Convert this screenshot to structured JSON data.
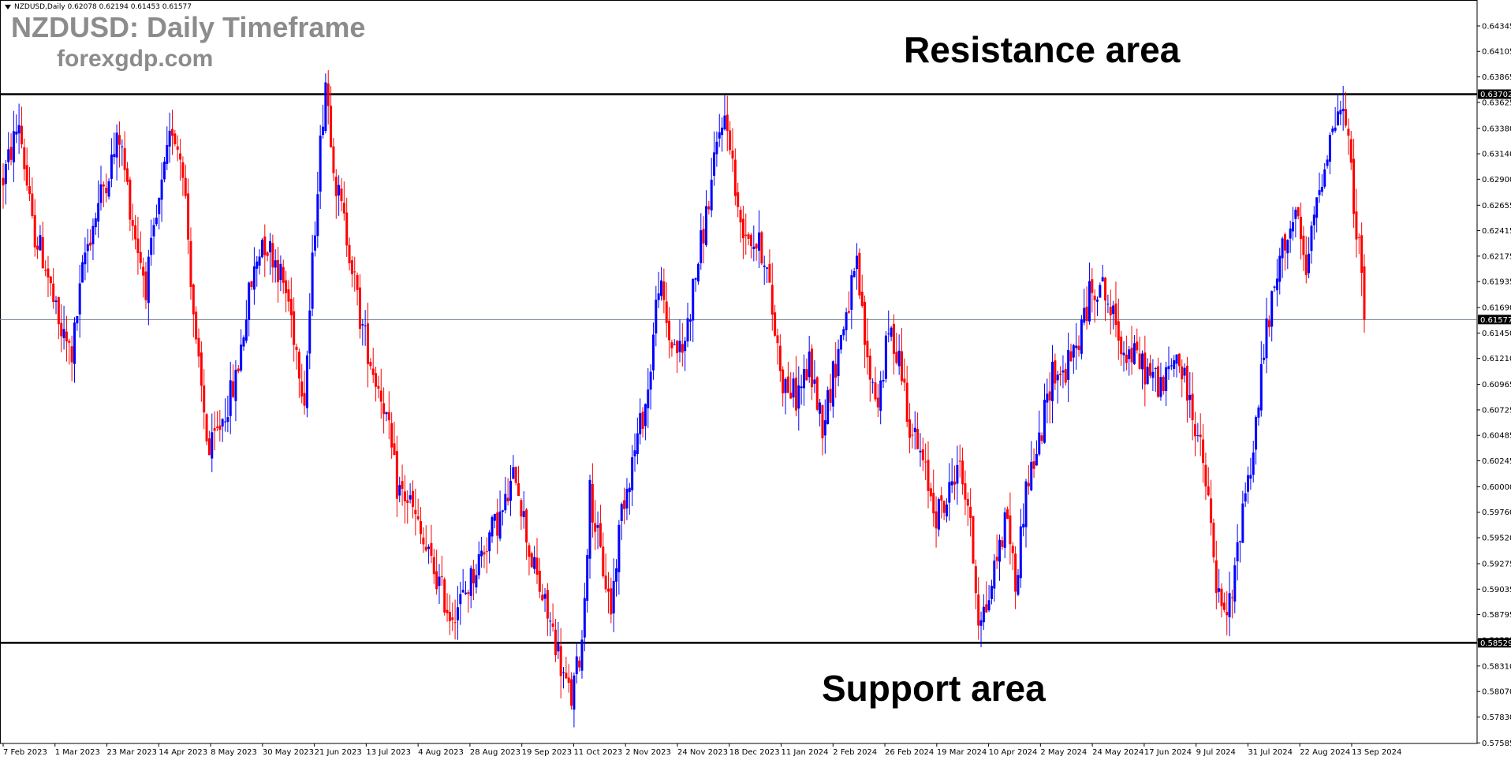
{
  "header": {
    "symbol_line": "NZDUSD,Daily  0.62078 0.62194 0.61453 0.61577"
  },
  "overlay": {
    "title": "NZDUSD: Daily Timeframe",
    "site": "forexgdp.com"
  },
  "annotations": {
    "resistance_label": "Resistance area",
    "support_label": "Support area"
  },
  "colors": {
    "bull": "#0000ff",
    "bear": "#ff0000",
    "level_line": "#000000",
    "current_price_line": "#708090",
    "background": "#ffffff",
    "price_tag_bg": "#000000"
  },
  "chart_data": {
    "type": "candlestick",
    "symbol": "NZDUSD",
    "timeframe": "Daily",
    "last_bar": {
      "open": 0.62078,
      "high": 0.62194,
      "low": 0.61453,
      "close": 0.61577
    },
    "ylim": [
      0.5758,
      0.6459
    ],
    "y_ticks": [
      "0.64345",
      "0.64105",
      "0.63865",
      "0.63625",
      "0.63380",
      "0.63140",
      "0.62900",
      "0.62655",
      "0.62415",
      "0.62175",
      "0.61935",
      "0.61690",
      "0.61450",
      "0.61210",
      "0.60965",
      "0.60725",
      "0.60485",
      "0.60245",
      "0.60000",
      "0.59760",
      "0.59520",
      "0.59275",
      "0.59035",
      "0.58795",
      "0.58555",
      "0.58310",
      "0.58070",
      "0.57830",
      "0.57585"
    ],
    "x_ticks": [
      "7 Feb 2023",
      "1 Mar 2023",
      "23 Mar 2023",
      "14 Apr 2023",
      "8 May 2023",
      "30 May 2023",
      "21 Jun 2023",
      "13 Jul 2023",
      "4 Aug 2023",
      "28 Aug 2023",
      "19 Sep 2023",
      "11 Oct 2023",
      "2 Nov 2023",
      "24 Nov 2023",
      "18 Dec 2023",
      "11 Jan 2024",
      "2 Feb 2024",
      "26 Feb 2024",
      "19 Mar 2024",
      "10 Apr 2024",
      "2 May 2024",
      "24 May 2024",
      "17 Jun 2024",
      "9 Jul 2024",
      "31 Jul 2024",
      "22 Aug 2024",
      "13 Sep 2024"
    ],
    "levels": {
      "resistance": 0.63702,
      "support": 0.58529,
      "current": 0.61577
    },
    "level_labels": {
      "resistance": "0.63702",
      "support": "0.58529",
      "current": "0.61577"
    },
    "close_path": [
      [
        0,
        0.629
      ],
      [
        12,
        0.6345
      ],
      [
        22,
        0.6245
      ],
      [
        32,
        0.621
      ],
      [
        42,
        0.615
      ],
      [
        52,
        0.6125
      ],
      [
        62,
        0.622
      ],
      [
        75,
        0.628
      ],
      [
        88,
        0.633
      ],
      [
        98,
        0.625
      ],
      [
        108,
        0.619
      ],
      [
        118,
        0.6265
      ],
      [
        128,
        0.634
      ],
      [
        136,
        0.6305
      ],
      [
        146,
        0.613
      ],
      [
        156,
        0.603
      ],
      [
        166,
        0.6065
      ],
      [
        176,
        0.61
      ],
      [
        186,
        0.618
      ],
      [
        196,
        0.6235
      ],
      [
        206,
        0.6215
      ],
      [
        216,
        0.6175
      ],
      [
        228,
        0.6085
      ],
      [
        238,
        0.629
      ],
      [
        244,
        0.6385
      ],
      [
        252,
        0.6285
      ],
      [
        262,
        0.6225
      ],
      [
        270,
        0.616
      ],
      [
        280,
        0.611
      ],
      [
        288,
        0.608
      ],
      [
        298,
        0.6
      ],
      [
        308,
        0.5985
      ],
      [
        318,
        0.5945
      ],
      [
        328,
        0.5915
      ],
      [
        338,
        0.588
      ],
      [
        348,
        0.5895
      ],
      [
        358,
        0.5925
      ],
      [
        368,
        0.5955
      ],
      [
        378,
        0.5975
      ],
      [
        388,
        0.6015
      ],
      [
        398,
        0.594
      ],
      [
        408,
        0.5895
      ],
      [
        418,
        0.5855
      ],
      [
        425,
        0.5815
      ],
      [
        430,
        0.58
      ],
      [
        438,
        0.5855
      ],
      [
        444,
        0.5995
      ],
      [
        452,
        0.5935
      ],
      [
        460,
        0.5885
      ],
      [
        468,
        0.598
      ],
      [
        478,
        0.6035
      ],
      [
        488,
        0.609
      ],
      [
        496,
        0.6195
      ],
      [
        504,
        0.614
      ],
      [
        514,
        0.6125
      ],
      [
        524,
        0.62
      ],
      [
        534,
        0.627
      ],
      [
        544,
        0.635
      ],
      [
        550,
        0.633
      ],
      [
        556,
        0.6255
      ],
      [
        566,
        0.6235
      ],
      [
        576,
        0.622
      ],
      [
        582,
        0.6165
      ],
      [
        590,
        0.61
      ],
      [
        600,
        0.6085
      ],
      [
        610,
        0.6115
      ],
      [
        620,
        0.606
      ],
      [
        628,
        0.6105
      ],
      [
        638,
        0.6165
      ],
      [
        646,
        0.6205
      ],
      [
        654,
        0.6115
      ],
      [
        662,
        0.608
      ],
      [
        670,
        0.6145
      ],
      [
        678,
        0.6125
      ],
      [
        686,
        0.606
      ],
      [
        696,
        0.602
      ],
      [
        706,
        0.5975
      ],
      [
        714,
        0.5985
      ],
      [
        722,
        0.6025
      ],
      [
        730,
        0.5985
      ],
      [
        738,
        0.588
      ],
      [
        744,
        0.5885
      ],
      [
        752,
        0.5935
      ],
      [
        760,
        0.5975
      ],
      [
        766,
        0.5905
      ],
      [
        774,
        0.6
      ],
      [
        784,
        0.604
      ],
      [
        794,
        0.611
      ],
      [
        802,
        0.6105
      ],
      [
        812,
        0.613
      ],
      [
        822,
        0.618
      ],
      [
        830,
        0.6195
      ],
      [
        838,
        0.6165
      ],
      [
        848,
        0.613
      ],
      [
        858,
        0.612
      ],
      [
        868,
        0.6105
      ],
      [
        878,
        0.6095
      ],
      [
        888,
        0.6125
      ],
      [
        896,
        0.609
      ],
      [
        904,
        0.605
      ],
      [
        912,
        0.5985
      ],
      [
        918,
        0.5905
      ],
      [
        924,
        0.5875
      ],
      [
        930,
        0.5895
      ],
      [
        938,
        0.5985
      ],
      [
        946,
        0.6035
      ],
      [
        954,
        0.613
      ],
      [
        962,
        0.6185
      ],
      [
        970,
        0.6235
      ],
      [
        978,
        0.6255
      ],
      [
        986,
        0.62
      ],
      [
        994,
        0.627
      ],
      [
        1002,
        0.632
      ],
      [
        1010,
        0.6355
      ],
      [
        1016,
        0.6345
      ],
      [
        1022,
        0.627
      ],
      [
        1026,
        0.6225
      ],
      [
        1030,
        0.6157
      ]
    ]
  }
}
